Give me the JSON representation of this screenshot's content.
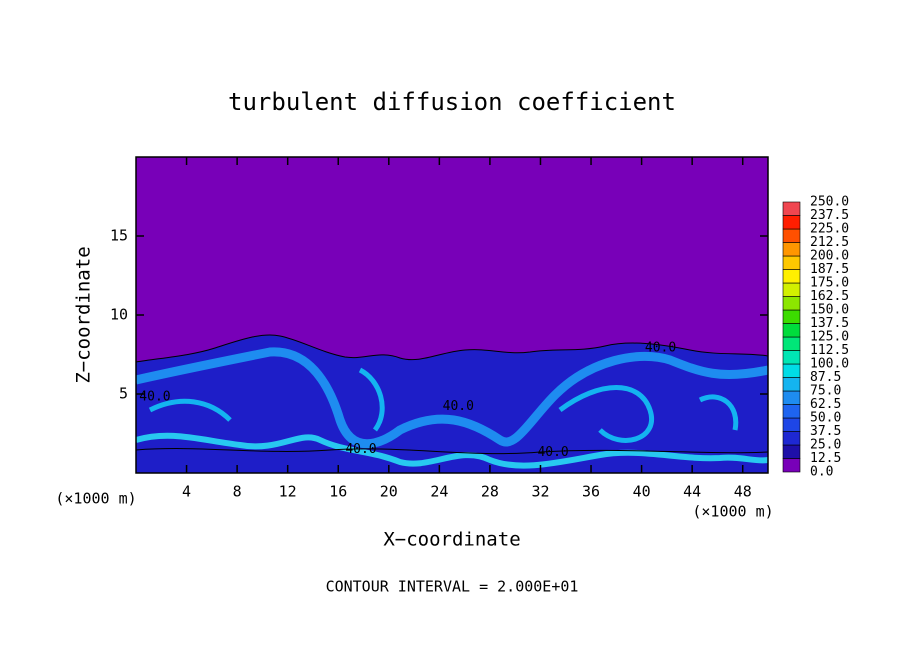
{
  "chart_data": {
    "type": "contour",
    "title": "turbulent diffusion coefficient",
    "xlabel": "X−coordinate",
    "ylabel": "Z−coordinate",
    "x_unit_label": "(×1000 m)",
    "x_unit_label_right": "(×1000 m)",
    "footnote": "CONTOUR INTERVAL = 2.000E+01",
    "xlim": [
      0,
      50
    ],
    "xticks": [
      4,
      8,
      12,
      16,
      20,
      24,
      28,
      32,
      36,
      40,
      44,
      48
    ],
    "ylim": [
      0,
      20
    ],
    "yticks": [
      5,
      10,
      15
    ],
    "background_color": "#7800b8",
    "contour_labels": [
      {
        "label": "40.0",
        "x": 1.5,
        "y": 4.8
      },
      {
        "label": "40.0",
        "x": 25.5,
        "y": 4.2
      },
      {
        "label": "40.0",
        "x": 33,
        "y": 1.3
      },
      {
        "label": "40.0",
        "x": 41.5,
        "y": 7.9
      },
      {
        "label": "40.0",
        "x": 17.8,
        "y": 1.5
      }
    ],
    "colorbar": {
      "levels": [
        {
          "value": 0,
          "label": "0.0"
        },
        {
          "value": 12.5,
          "label": "12.5"
        },
        {
          "value": 25,
          "label": "25.0"
        },
        {
          "value": 37.5,
          "label": "37.5"
        },
        {
          "value": 50,
          "label": "50.0"
        },
        {
          "value": 62.5,
          "label": "62.5"
        },
        {
          "value": 75,
          "label": "75.0"
        },
        {
          "value": 87.5,
          "label": "87.5"
        },
        {
          "value": 100,
          "label": "100.0"
        },
        {
          "value": 112.5,
          "label": "112.5"
        },
        {
          "value": 125,
          "label": "125.0"
        },
        {
          "value": 137.5,
          "label": "137.5"
        },
        {
          "value": 150,
          "label": "150.0"
        },
        {
          "value": 162.5,
          "label": "162.5"
        },
        {
          "value": 175,
          "label": "175.0"
        },
        {
          "value": 187.5,
          "label": "187.5"
        },
        {
          "value": 200,
          "label": "200.0"
        },
        {
          "value": 212.5,
          "label": "212.5"
        },
        {
          "value": 225,
          "label": "225.0"
        },
        {
          "value": 237.5,
          "label": "237.5"
        },
        {
          "value": 250,
          "label": "250.0"
        }
      ],
      "colors": [
        "#7800b8",
        "#1e0fa8",
        "#1e28d2",
        "#1e46e6",
        "#1e64f0",
        "#1e8cf0",
        "#14b4f0",
        "#00dce6",
        "#00e6b4",
        "#00e678",
        "#00dc3c",
        "#3cdc00",
        "#8ce600",
        "#d2f000",
        "#fff000",
        "#ffc800",
        "#ff9600",
        "#ff5000",
        "#ff1e00",
        "#f04650"
      ]
    }
  }
}
